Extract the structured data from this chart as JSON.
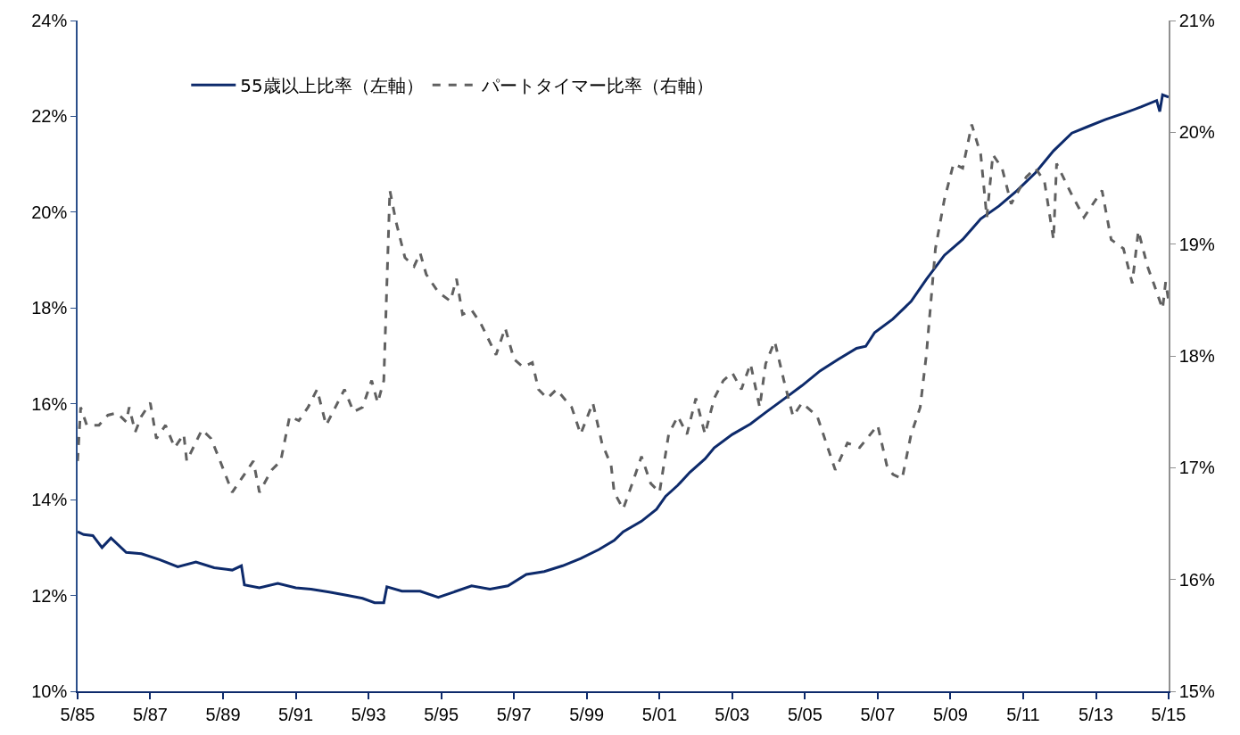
{
  "chart_data": {
    "type": "line",
    "xlim": [
      "1985-05",
      "2015-05"
    ],
    "xticks": [
      {
        "value": "1985-05",
        "label": "5/85"
      },
      {
        "value": "1987-05",
        "label": "5/87"
      },
      {
        "value": "1989-05",
        "label": "5/89"
      },
      {
        "value": "1991-05",
        "label": "5/91"
      },
      {
        "value": "1993-05",
        "label": "5/93"
      },
      {
        "value": "1995-05",
        "label": "5/95"
      },
      {
        "value": "1997-05",
        "label": "5/97"
      },
      {
        "value": "1999-05",
        "label": "5/99"
      },
      {
        "value": "2001-05",
        "label": "5/01"
      },
      {
        "value": "2003-05",
        "label": "5/03"
      },
      {
        "value": "2005-05",
        "label": "5/05"
      },
      {
        "value": "2007-05",
        "label": "5/07"
      },
      {
        "value": "2009-05",
        "label": "5/09"
      },
      {
        "value": "2011-05",
        "label": "5/11"
      },
      {
        "value": "2013-05",
        "label": "5/13"
      },
      {
        "value": "2015-05",
        "label": "5/15"
      }
    ],
    "ylim": [
      10,
      24
    ],
    "yticks": [
      {
        "value": 10,
        "label": "10%"
      },
      {
        "value": 12,
        "label": "12%"
      },
      {
        "value": 14,
        "label": "14%"
      },
      {
        "value": 16,
        "label": "16%"
      },
      {
        "value": 18,
        "label": "18%"
      },
      {
        "value": 20,
        "label": "20%"
      },
      {
        "value": 22,
        "label": "22%"
      },
      {
        "value": 24,
        "label": "24%"
      }
    ],
    "y2lim": [
      15,
      21
    ],
    "y2ticks": [
      {
        "value": 15,
        "label": "15%"
      },
      {
        "value": 16,
        "label": "16%"
      },
      {
        "value": 17,
        "label": "17%"
      },
      {
        "value": 18,
        "label": "18%"
      },
      {
        "value": 19,
        "label": "19%"
      },
      {
        "value": 20,
        "label": "20%"
      },
      {
        "value": 21,
        "label": "21%"
      }
    ],
    "legend": "top left",
    "marker": "none",
    "series": [
      {
        "name": "55歳以上比率（左軸）",
        "color": "#0d2a6b",
        "line_style": "solid",
        "x": [
          "1985-05",
          "1985-07",
          "1985-10",
          "1986-01",
          "1986-04",
          "1986-09",
          "1987-02",
          "1987-08",
          "1988-02",
          "1988-08",
          "1989-02",
          "1989-08",
          "1989-11",
          "1989-12",
          "1990-05",
          "1990-11",
          "1991-05",
          "1991-10",
          "1992-04",
          "1992-10",
          "1993-03",
          "1993-07",
          "1993-10",
          "1993-11",
          "1994-04",
          "1994-10",
          "1995-04",
          "1995-09",
          "1996-03",
          "1996-09",
          "1997-03",
          "1997-09",
          "1998-03",
          "1998-09",
          "1999-03",
          "1999-09",
          "2000-02",
          "2000-05",
          "2000-11",
          "2001-04",
          "2001-07",
          "2001-11",
          "2002-03",
          "2002-08",
          "2002-11",
          "2003-05",
          "2003-11",
          "2004-04",
          "2004-10",
          "2005-04",
          "2005-10",
          "2006-04",
          "2006-10",
          "2007-01",
          "2007-04",
          "2007-10",
          "2008-04",
          "2008-09",
          "2009-03",
          "2009-09",
          "2010-03",
          "2010-09",
          "2011-03",
          "2011-09",
          "2012-03",
          "2012-09",
          "2013-02",
          "2013-08",
          "2014-02",
          "2014-08",
          "2015-01",
          "2015-02",
          "2015-03",
          "2015-05"
        ],
        "values": [
          13.33,
          13.27,
          13.25,
          13.0,
          13.2,
          12.9,
          12.87,
          12.75,
          12.6,
          12.7,
          12.58,
          12.53,
          12.62,
          12.22,
          12.16,
          12.25,
          12.16,
          12.13,
          12.07,
          12.0,
          11.94,
          11.85,
          11.85,
          12.18,
          12.09,
          12.09,
          11.96,
          12.07,
          12.2,
          12.13,
          12.2,
          12.44,
          12.5,
          12.62,
          12.77,
          12.96,
          13.15,
          13.33,
          13.55,
          13.8,
          14.07,
          14.3,
          14.57,
          14.85,
          15.08,
          15.36,
          15.58,
          15.82,
          16.1,
          16.38,
          16.69,
          16.93,
          17.16,
          17.2,
          17.49,
          17.77,
          18.14,
          18.6,
          19.1,
          19.43,
          19.86,
          20.13,
          20.45,
          20.82,
          21.28,
          21.65,
          21.78,
          21.93,
          22.06,
          22.2,
          22.33,
          22.1,
          22.45,
          22.4
        ]
      },
      {
        "name": "パートタイマー比率（右軸）",
        "color": "#606060",
        "line_style": "dashed",
        "axis": "y2",
        "x": [
          "1985-05",
          "1985-06",
          "1985-08",
          "1985-12",
          "1986-03",
          "1986-06",
          "1986-09",
          "1986-10",
          "1986-12",
          "1987-02",
          "1987-05",
          "1987-07",
          "1987-10",
          "1988-01",
          "1988-04",
          "1988-05",
          "1988-10",
          "1989-01",
          "1989-04",
          "1989-08",
          "1989-12",
          "1990-03",
          "1990-05",
          "1990-09",
          "1990-12",
          "1991-03",
          "1991-06",
          "1991-09",
          "1991-12",
          "1992-03",
          "1992-06",
          "1992-09",
          "1992-12",
          "1993-03",
          "1993-06",
          "1993-08",
          "1993-10",
          "1993-12",
          "1994-02",
          "1994-05",
          "1994-08",
          "1994-10",
          "1994-12",
          "1995-04",
          "1995-08",
          "1995-10",
          "1995-12",
          "1996-03",
          "1996-06",
          "1996-11",
          "1997-02",
          "1997-05",
          "1997-08",
          "1997-11",
          "1998-01",
          "1998-04",
          "1998-07",
          "1998-12",
          "1999-03",
          "1999-07",
          "1999-10",
          "2000-01",
          "2000-02",
          "2000-05",
          "2000-08",
          "2000-11",
          "2001-02",
          "2001-05",
          "2001-08",
          "2001-11",
          "2002-02",
          "2002-05",
          "2002-08",
          "2002-11",
          "2003-02",
          "2003-05",
          "2003-08",
          "2003-11",
          "2004-02",
          "2004-04",
          "2004-07",
          "2004-10",
          "2005-01",
          "2005-04",
          "2005-09",
          "2006-03",
          "2006-07",
          "2006-11",
          "2007-05",
          "2007-08",
          "2007-10",
          "2008-01",
          "2008-04",
          "2008-07",
          "2008-09",
          "2008-12",
          "2009-03",
          "2009-06",
          "2009-09",
          "2009-12",
          "2010-03",
          "2010-05",
          "2010-07",
          "2010-10",
          "2011-01",
          "2011-06",
          "2011-09",
          "2011-12",
          "2012-03",
          "2012-04",
          "2012-09",
          "2013-01",
          "2013-07",
          "2013-10",
          "2014-02",
          "2014-05",
          "2014-07",
          "2014-10",
          "2014-12",
          "2015-03",
          "2015-04",
          "2015-05"
        ],
        "values": [
          17.06,
          17.54,
          17.38,
          17.38,
          17.47,
          17.49,
          17.41,
          17.54,
          17.32,
          17.46,
          17.58,
          17.26,
          17.38,
          17.18,
          17.3,
          17.06,
          17.34,
          17.26,
          17.06,
          16.78,
          16.94,
          17.06,
          16.78,
          16.98,
          17.06,
          17.46,
          17.42,
          17.54,
          17.7,
          17.38,
          17.54,
          17.7,
          17.5,
          17.54,
          17.78,
          17.58,
          17.78,
          19.48,
          19.2,
          18.88,
          18.8,
          18.92,
          18.73,
          18.57,
          18.49,
          18.69,
          18.37,
          18.41,
          18.29,
          18.01,
          18.25,
          17.97,
          17.9,
          17.94,
          17.7,
          17.62,
          17.7,
          17.54,
          17.3,
          17.58,
          17.22,
          17.02,
          16.78,
          16.63,
          16.86,
          17.1,
          16.86,
          16.78,
          17.3,
          17.46,
          17.3,
          17.62,
          17.3,
          17.62,
          17.78,
          17.85,
          17.7,
          17.93,
          17.54,
          17.93,
          18.13,
          17.78,
          17.46,
          17.58,
          17.46,
          16.98,
          17.22,
          17.18,
          17.38,
          17.02,
          16.94,
          16.9,
          17.3,
          17.54,
          18.01,
          18.96,
          19.4,
          19.72,
          19.68,
          20.07,
          19.8,
          19.24,
          19.8,
          19.68,
          19.36,
          19.6,
          19.68,
          19.56,
          19.04,
          19.72,
          19.44,
          19.24,
          19.48,
          19.04,
          18.96,
          18.65,
          19.12,
          18.8,
          18.65,
          18.42,
          18.66,
          18.49
        ]
      }
    ]
  }
}
